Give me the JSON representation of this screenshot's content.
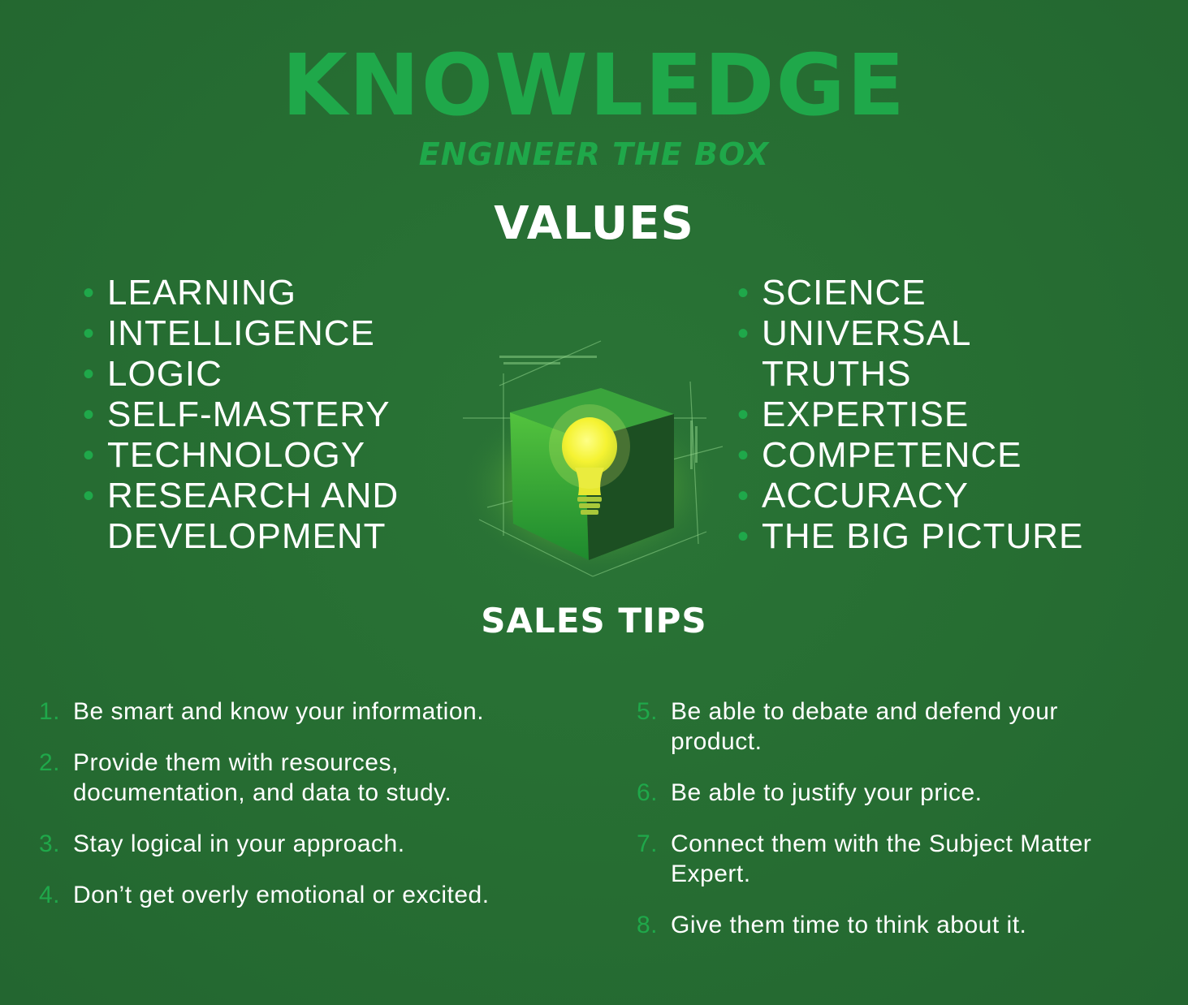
{
  "header": {
    "title": "KNOWLEDGE",
    "subtitle": "ENGINEER THE BOX"
  },
  "values": {
    "heading": "VALUES",
    "left": [
      "LEARNING",
      "INTELLIGENCE",
      "LOGIC",
      "SELF-MASTERY",
      "TECHNOLOGY",
      "RESEARCH AND DEVELOPMENT"
    ],
    "right": [
      "SCIENCE",
      "UNIVERSAL TRUTHS",
      "EXPERTISE",
      "COMPETENCE",
      "ACCURACY",
      "THE BIG PICTURE"
    ]
  },
  "sales_tips": {
    "heading": "SALES TIPS",
    "left": [
      {
        "num": "1.",
        "text": "Be smart and know your information."
      },
      {
        "num": "2.",
        "text": "Provide them with resources, documentation, and data to study."
      },
      {
        "num": "3.",
        "text": "Stay logical in your approach."
      },
      {
        "num": "4.",
        "text": "Don’t get overly emotional or excited."
      }
    ],
    "right": [
      {
        "num": "5.",
        "text": "Be able to debate and defend your product."
      },
      {
        "num": "6.",
        "text": "Be able to justify your price."
      },
      {
        "num": "7.",
        "text": "Connect them with the Subject Matter Expert."
      },
      {
        "num": "8.",
        "text": "Give them time to think about it."
      }
    ]
  },
  "colors": {
    "background": "#266d32",
    "accent": "#1fa84a",
    "text": "#ffffff",
    "bulb": "#f4f021"
  },
  "illustration": {
    "icon": "lightbulb-cube-icon"
  }
}
